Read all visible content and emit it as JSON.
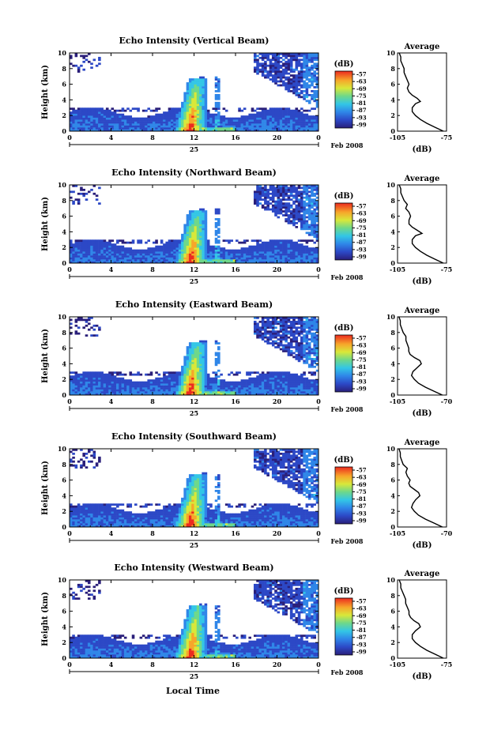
{
  "figure": {
    "x_axis_title": "Local Time",
    "day_label": "25",
    "month_label": "Feb 2008",
    "y_axis_label": "Height (km)",
    "colorbar_unit": "(dB)",
    "average_title": "Average",
    "average_unit": "(dB)"
  },
  "chart_data": [
    {
      "type": "heatmap",
      "title": "Echo Intensity (Vertical Beam)",
      "ylabel": "Height (km)",
      "x_ticks": [
        "0",
        "4",
        "8",
        "12",
        "16",
        "20",
        "0"
      ],
      "y_ticks": [
        "0",
        "2",
        "4",
        "6",
        "8",
        "10"
      ],
      "xlim_hours": [
        0,
        24
      ],
      "ylim_km": [
        0,
        10
      ],
      "colorbar": {
        "unit": "(dB)",
        "ticks": [
          "-57",
          "-63",
          "-69",
          "-75",
          "-81",
          "-87",
          "-93",
          "-99"
        ]
      },
      "average_profile": {
        "title": "Average",
        "xlabel": "(dB)",
        "x_ticks": [
          "-105",
          "-75"
        ],
        "xlim": [
          -105,
          -75
        ],
        "height_km": [
          0,
          0.5,
          1,
          1.5,
          2,
          2.5,
          3,
          3.5,
          3.8,
          4.2,
          4.6,
          5,
          5.5,
          6,
          6.5,
          7,
          7.5,
          8,
          8.5,
          9,
          9.5,
          10
        ],
        "db": [
          -77,
          -82,
          -87,
          -91,
          -94,
          -96,
          -96,
          -94,
          -91,
          -93,
          -96,
          -98,
          -99,
          -98,
          -99,
          -100,
          -101,
          -101,
          -102,
          -103,
          -103,
          -104
        ]
      }
    },
    {
      "type": "heatmap",
      "title": "Echo Intensity (Northward Beam)",
      "ylabel": "Height (km)",
      "x_ticks": [
        "0",
        "4",
        "8",
        "12",
        "16",
        "20",
        "0"
      ],
      "y_ticks": [
        "0",
        "2",
        "4",
        "6",
        "8",
        "10"
      ],
      "xlim_hours": [
        0,
        24
      ],
      "ylim_km": [
        0,
        10
      ],
      "colorbar": {
        "unit": "(dB)",
        "ticks": [
          "-57",
          "-63",
          "-69",
          "-75",
          "-81",
          "-87",
          "-93",
          "-99"
        ]
      },
      "average_profile": {
        "title": "Average",
        "xlabel": "(dB)",
        "x_ticks": [
          "-105",
          "-75"
        ],
        "xlim": [
          -105,
          -75
        ],
        "height_km": [
          0,
          0.5,
          1,
          1.5,
          2,
          2.5,
          3,
          3.5,
          3.8,
          4.2,
          4.6,
          5,
          5.5,
          6,
          6.5,
          7,
          7.5,
          8,
          8.5,
          9,
          9.5,
          10
        ],
        "db": [
          -77,
          -82,
          -87,
          -91,
          -94,
          -96,
          -96,
          -94,
          -90,
          -93,
          -96,
          -98,
          -98,
          -97,
          -98,
          -100,
          -99,
          -101,
          -102,
          -103,
          -103,
          -104
        ]
      }
    },
    {
      "type": "heatmap",
      "title": "Echo Intensity (Eastward Beam)",
      "ylabel": "Height (km)",
      "x_ticks": [
        "0",
        "4",
        "8",
        "12",
        "16",
        "20",
        "0"
      ],
      "y_ticks": [
        "0",
        "2",
        "4",
        "6",
        "8",
        "10"
      ],
      "xlim_hours": [
        0,
        24
      ],
      "ylim_km": [
        0,
        10
      ],
      "colorbar": {
        "unit": "(dB)",
        "ticks": [
          "-57",
          "-63",
          "-69",
          "-75",
          "-81",
          "-87",
          "-93",
          "-99"
        ]
      },
      "average_profile": {
        "title": "Average",
        "xlabel": "(dB)",
        "x_ticks": [
          "-105",
          "-70"
        ],
        "xlim": [
          -105,
          -70
        ],
        "height_km": [
          0,
          0.5,
          1,
          1.5,
          2,
          2.5,
          3,
          3.5,
          4,
          4.4,
          4.8,
          5.2,
          5.6,
          6,
          6.5,
          7,
          7.5,
          8,
          8.5,
          9,
          9.5,
          10
        ],
        "db": [
          -73,
          -79,
          -85,
          -90,
          -93,
          -95,
          -94,
          -91,
          -88,
          -89,
          -93,
          -96,
          -97,
          -97,
          -98,
          -99,
          -99,
          -101,
          -102,
          -103,
          -103,
          -104
        ]
      }
    },
    {
      "type": "heatmap",
      "title": "Echo Intensity (Southward Beam)",
      "ylabel": "Height (km)",
      "x_ticks": [
        "0",
        "4",
        "8",
        "12",
        "16",
        "20",
        "0"
      ],
      "y_ticks": [
        "0",
        "2",
        "4",
        "6",
        "8",
        "10"
      ],
      "xlim_hours": [
        0,
        24
      ],
      "ylim_km": [
        0,
        10
      ],
      "colorbar": {
        "unit": "(dB)",
        "ticks": [
          "-57",
          "-63",
          "-69",
          "-75",
          "-81",
          "-87",
          "-93",
          "-99"
        ]
      },
      "average_profile": {
        "title": "Average",
        "xlabel": "(dB)",
        "x_ticks": [
          "-105",
          "-70"
        ],
        "xlim": [
          -105,
          -70
        ],
        "height_km": [
          0,
          0.5,
          1,
          1.5,
          2,
          2.5,
          3,
          3.5,
          4,
          4.4,
          4.8,
          5.2,
          5.6,
          6,
          6.5,
          7,
          7.5,
          8,
          8.5,
          9,
          9.5,
          10
        ],
        "db": [
          -73,
          -79,
          -85,
          -90,
          -93,
          -95,
          -94,
          -92,
          -89,
          -90,
          -93,
          -96,
          -97,
          -96,
          -98,
          -99,
          -98,
          -101,
          -102,
          -103,
          -103,
          -104
        ]
      }
    },
    {
      "type": "heatmap",
      "title": "Echo Intensity (Westward Beam)",
      "ylabel": "Height (km)",
      "x_ticks": [
        "0",
        "4",
        "8",
        "12",
        "16",
        "20",
        "0"
      ],
      "y_ticks": [
        "0",
        "2",
        "4",
        "6",
        "8",
        "10"
      ],
      "xlim_hours": [
        0,
        24
      ],
      "ylim_km": [
        0,
        10
      ],
      "colorbar": {
        "unit": "(dB)",
        "ticks": [
          "-57",
          "-63",
          "-69",
          "-75",
          "-81",
          "-87",
          "-93",
          "-99"
        ]
      },
      "average_profile": {
        "title": "Average",
        "xlabel": "(dB)",
        "x_ticks": [
          "-105",
          "-75"
        ],
        "xlim": [
          -105,
          -75
        ],
        "height_km": [
          0,
          0.5,
          1,
          1.5,
          2,
          2.5,
          3,
          3.5,
          4,
          4.4,
          4.8,
          5.2,
          5.6,
          6,
          6.5,
          7,
          7.5,
          8,
          8.5,
          9,
          9.5,
          10
        ],
        "db": [
          -77,
          -82,
          -87,
          -91,
          -94,
          -96,
          -96,
          -94,
          -91,
          -92,
          -95,
          -97,
          -98,
          -98,
          -99,
          -100,
          -100,
          -101,
          -102,
          -103,
          -103,
          -104
        ]
      }
    }
  ]
}
